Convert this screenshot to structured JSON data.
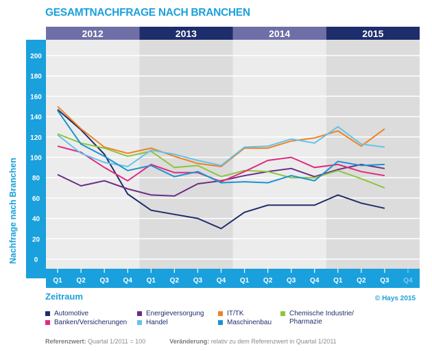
{
  "title": "GESAMTNACHFRAGE NACH BRANCHEN",
  "copyright": "© Hays 2015",
  "colors": {
    "accent": "#1aa0dc",
    "year_band_light": "#6e6fa6",
    "year_band_dark": "#1e2d6b",
    "plot_bg_light": "#ececec",
    "plot_bg_dark": "#dcdcdc",
    "q4_2015_label": "#7fcdf0"
  },
  "chart_data": {
    "type": "line",
    "title": "GESAMTNACHFRAGE NACH BRANCHEN",
    "xlabel": "Zeitraum",
    "ylabel": "Nachfrage nach Branchen",
    "ylim": [
      0,
      200
    ],
    "yticks": [
      0,
      20,
      40,
      60,
      80,
      100,
      120,
      140,
      160,
      180,
      200
    ],
    "grid": true,
    "legend_position": "bottom",
    "years": [
      "2012",
      "2013",
      "2014",
      "2015"
    ],
    "categories": [
      "Q1",
      "Q2",
      "Q3",
      "Q4",
      "Q1",
      "Q2",
      "Q3",
      "Q4",
      "Q1",
      "Q2",
      "Q3",
      "Q4",
      "Q1",
      "Q2",
      "Q3",
      "Q4"
    ],
    "series": [
      {
        "name": "Automotive",
        "color": "#1e2d6b",
        "values": [
          147,
          127,
          103,
          64,
          48,
          44,
          40,
          30,
          46,
          53,
          53,
          53,
          63,
          55,
          50,
          null
        ]
      },
      {
        "name": "Energieversorgung",
        "color": "#6b2d86",
        "values": [
          83,
          72,
          77,
          69,
          63,
          62,
          74,
          77,
          82,
          86,
          89,
          81,
          88,
          93,
          89,
          null
        ]
      },
      {
        "name": "IT/TK",
        "color": "#ee8223",
        "values": [
          150,
          128,
          110,
          104,
          109,
          101,
          94,
          91,
          109,
          109,
          116,
          119,
          126,
          111,
          128,
          null
        ]
      },
      {
        "name": "Chemische Industrie/ Pharmazie",
        "color": "#8cc63e",
        "values": [
          123,
          114,
          109,
          101,
          106,
          90,
          92,
          81,
          87,
          86,
          80,
          80,
          87,
          79,
          70,
          null
        ]
      },
      {
        "name": "Banken/Versicherungen",
        "color": "#e2297f",
        "values": [
          111,
          105,
          90,
          77,
          93,
          85,
          85,
          76,
          86,
          97,
          100,
          90,
          93,
          86,
          82,
          null
        ]
      },
      {
        "name": "Handel",
        "color": "#64c3ea",
        "values": [
          122,
          104,
          95,
          91,
          107,
          103,
          97,
          92,
          110,
          111,
          118,
          114,
          130,
          113,
          110,
          null
        ]
      },
      {
        "name": "Maschinenbau",
        "color": "#1a93d2",
        "values": [
          146,
          113,
          101,
          87,
          92,
          81,
          86,
          75,
          76,
          75,
          82,
          77,
          96,
          92,
          93,
          null
        ]
      }
    ]
  },
  "legend": [
    {
      "label": "Automotive",
      "color": "#1e2d6b"
    },
    {
      "label": "Energieversorgung",
      "color": "#6b2d86"
    },
    {
      "label": "IT/TK",
      "color": "#ee8223"
    },
    {
      "label": "Chemische Industrie/",
      "label2": "Pharmazie",
      "color": "#8cc63e"
    },
    {
      "label": "Banken/Versicherungen",
      "color": "#e2297f"
    },
    {
      "label": "Handel",
      "color": "#64c3ea"
    },
    {
      "label": "Maschinenbau",
      "color": "#1a93d2"
    }
  ],
  "footnote": {
    "ref_label": "Referenzwert:",
    "ref_value": "Quartal 1/2011 = 100",
    "change_label": "Veränderung:",
    "change_value": "relativ zu dem Referenzwert in Quartal 1/2011"
  }
}
